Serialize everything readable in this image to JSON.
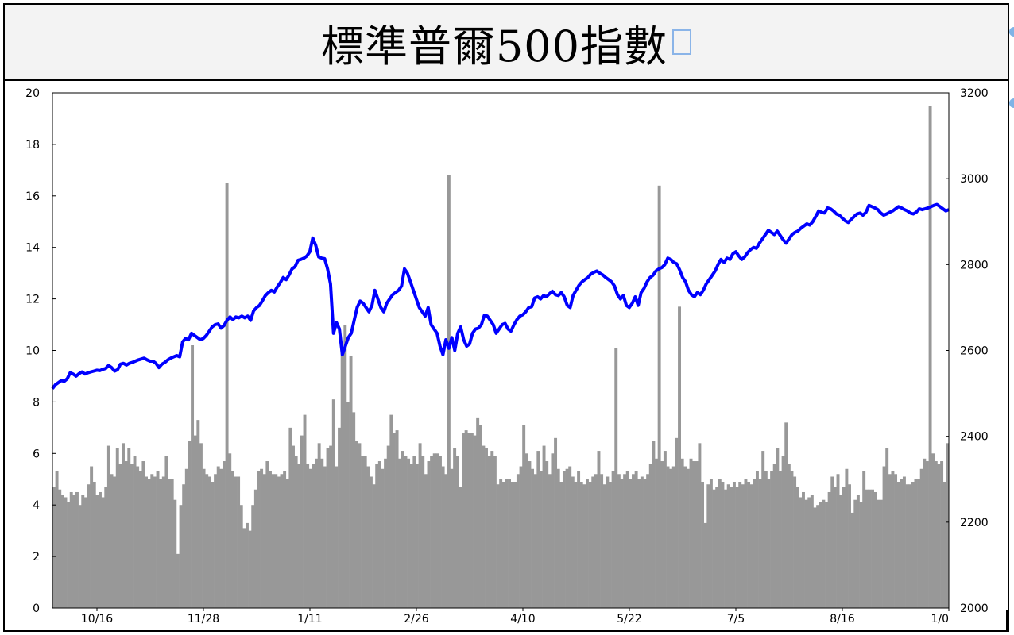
{
  "title": "標準普爾500指數",
  "colors": {
    "index_line": "#0000ff",
    "volume_bars": "#989898",
    "title_background": "#f3f3f3"
  },
  "chart_data": {
    "type": "bar+line",
    "title": "標準普爾500指數",
    "x_tick_labels": [
      "10/16",
      "11/28",
      "1/11",
      "2/26",
      "4/10",
      "5/22",
      "7/5",
      "8/16",
      "1/0"
    ],
    "y_left": {
      "ticks": [
        "0",
        "2",
        "4",
        "6",
        "8",
        "10",
        "12",
        "14",
        "16",
        "18",
        "20"
      ],
      "range": [
        0,
        20
      ]
    },
    "y_right": {
      "ticks": [
        "2000",
        "2200",
        "2400",
        "2600",
        "2800",
        "3000",
        "3200"
      ],
      "range": [
        2000,
        3200
      ]
    },
    "grid": false,
    "series": [
      {
        "kind": "bar",
        "axis": "left",
        "values": [
          4.7,
          5.3,
          4.6,
          4.4,
          4.3,
          4.1,
          4.5,
          4.4,
          4.5,
          4.0,
          4.4,
          4.3,
          4.8,
          5.5,
          4.9,
          4.4,
          4.5,
          4.3,
          4.7,
          6.3,
          5.2,
          5.1,
          6.2,
          5.6,
          6.4,
          5.7,
          6.2,
          5.6,
          5.9,
          5.5,
          5.3,
          5.7,
          5.1,
          5.0,
          5.2,
          5.1,
          5.3,
          5.0,
          5.1,
          5.9,
          5.0,
          5.0,
          4.2,
          2.1,
          4.0,
          4.8,
          5.4,
          6.5,
          10.2,
          6.7,
          7.3,
          6.4,
          5.4,
          5.2,
          5.1,
          4.9,
          5.2,
          5.5,
          5.4,
          5.7,
          16.5,
          6.0,
          5.3,
          5.1,
          5.1,
          4.0,
          3.1,
          3.3,
          3.0,
          4.0,
          4.6,
          5.3,
          5.4,
          5.2,
          5.7,
          5.3,
          5.2,
          5.2,
          5.1,
          5.2,
          5.3,
          5.0,
          7.0,
          6.3,
          5.9,
          5.6,
          6.7,
          7.5,
          5.6,
          5.4,
          5.6,
          5.8,
          6.4,
          5.8,
          5.5,
          6.2,
          6.3,
          8.1,
          5.5,
          7.0,
          10.0,
          11.0,
          8.0,
          9.8,
          7.6,
          6.5,
          6.4,
          5.9,
          5.9,
          5.5,
          5.1,
          4.8,
          5.6,
          5.7,
          5.4,
          5.8,
          6.3,
          7.5,
          6.8,
          6.9,
          5.8,
          6.1,
          5.9,
          5.8,
          5.6,
          5.9,
          5.6,
          6.4,
          5.9,
          5.2,
          5.7,
          5.9,
          6.0,
          6.0,
          5.9,
          5.5,
          5.2,
          16.8,
          5.4,
          6.2,
          5.9,
          4.7,
          6.8,
          6.9,
          6.8,
          6.8,
          6.7,
          7.4,
          7.1,
          6.3,
          6.2,
          5.9,
          6.1,
          5.9,
          4.8,
          5.0,
          4.9,
          5.0,
          5.0,
          4.9,
          4.9,
          5.2,
          5.5,
          7.1,
          6.0,
          5.7,
          5.4,
          5.2,
          6.1,
          5.3,
          6.3,
          5.7,
          5.2,
          6.0,
          6.6,
          5.4,
          4.9,
          5.3,
          5.4,
          5.5,
          5.1,
          4.9,
          5.3,
          4.9,
          4.8,
          5.0,
          4.9,
          5.1,
          5.2,
          6.1,
          5.2,
          4.8,
          5.1,
          4.9,
          5.3,
          10.1,
          5.2,
          5.0,
          5.2,
          5.3,
          5.0,
          5.2,
          5.3,
          5.0,
          5.1,
          5.0,
          5.2,
          5.6,
          6.5,
          5.8,
          16.4,
          5.7,
          6.1,
          5.5,
          5.4,
          5.5,
          6.6,
          11.7,
          5.8,
          5.5,
          5.4,
          5.8,
          5.7,
          5.7,
          6.4,
          4.9,
          3.3,
          4.8,
          5.0,
          4.6,
          4.7,
          5.0,
          4.9,
          4.6,
          4.8,
          4.7,
          4.9,
          4.7,
          4.9,
          4.8,
          5.0,
          4.9,
          4.8,
          5.0,
          5.3,
          5.0,
          6.1,
          5.3,
          5.0,
          5.3,
          5.6,
          6.2,
          5.3,
          5.9,
          7.2,
          5.6,
          5.3,
          5.1,
          4.7,
          4.3,
          4.5,
          4.2,
          4.3,
          4.4,
          3.9,
          4.0,
          4.1,
          4.2,
          4.1,
          4.5,
          5.1,
          4.7,
          5.2,
          4.4,
          4.7,
          5.4,
          4.8,
          3.7,
          4.2,
          4.4,
          4.1,
          5.3,
          4.6,
          4.6,
          4.6,
          4.5,
          4.2,
          4.2,
          5.5,
          6.2,
          5.2,
          5.3,
          5.2,
          4.9,
          5.0,
          5.1,
          4.8,
          4.8,
          4.9,
          5.0,
          5.0,
          5.4,
          5.8,
          5.7,
          19.5,
          6.0,
          5.7,
          5.6,
          5.7,
          4.9,
          6.4
        ]
      },
      {
        "kind": "line",
        "axis": "right",
        "values": [
          2511,
          2520,
          2525,
          2530,
          2528,
          2534,
          2548,
          2545,
          2540,
          2546,
          2550,
          2545,
          2548,
          2550,
          2552,
          2554,
          2553,
          2556,
          2558,
          2565,
          2560,
          2552,
          2555,
          2568,
          2570,
          2566,
          2570,
          2572,
          2575,
          2578,
          2580,
          2582,
          2578,
          2575,
          2575,
          2570,
          2560,
          2568,
          2572,
          2578,
          2582,
          2585,
          2588,
          2585,
          2620,
          2628,
          2625,
          2640,
          2635,
          2630,
          2625,
          2628,
          2635,
          2645,
          2655,
          2660,
          2662,
          2652,
          2658,
          2670,
          2678,
          2672,
          2678,
          2676,
          2680,
          2676,
          2680,
          2670,
          2692,
          2700,
          2705,
          2716,
          2728,
          2735,
          2740,
          2736,
          2748,
          2758,
          2770,
          2765,
          2776,
          2790,
          2795,
          2810,
          2812,
          2815,
          2820,
          2830,
          2862,
          2845,
          2818,
          2815,
          2814,
          2790,
          2755,
          2640,
          2665,
          2650,
          2590,
          2610,
          2630,
          2640,
          2670,
          2700,
          2715,
          2710,
          2700,
          2690,
          2705,
          2740,
          2720,
          2700,
          2690,
          2710,
          2720,
          2730,
          2735,
          2740,
          2750,
          2790,
          2780,
          2760,
          2740,
          2720,
          2700,
          2690,
          2680,
          2700,
          2660,
          2650,
          2640,
          2610,
          2590,
          2625,
          2605,
          2630,
          2600,
          2640,
          2655,
          2625,
          2610,
          2615,
          2640,
          2650,
          2652,
          2660,
          2682,
          2680,
          2670,
          2660,
          2640,
          2650,
          2660,
          2663,
          2650,
          2645,
          2660,
          2672,
          2680,
          2683,
          2690,
          2700,
          2702,
          2722,
          2725,
          2720,
          2728,
          2725,
          2732,
          2738,
          2730,
          2728,
          2735,
          2725,
          2705,
          2700,
          2728,
          2740,
          2752,
          2760,
          2765,
          2770,
          2778,
          2782,
          2785,
          2780,
          2776,
          2770,
          2765,
          2760,
          2750,
          2730,
          2720,
          2728,
          2705,
          2700,
          2710,
          2725,
          2705,
          2735,
          2745,
          2760,
          2770,
          2775,
          2785,
          2790,
          2793,
          2800,
          2815,
          2812,
          2805,
          2802,
          2788,
          2770,
          2760,
          2740,
          2730,
          2725,
          2735,
          2730,
          2740,
          2755,
          2765,
          2775,
          2785,
          2800,
          2812,
          2805,
          2815,
          2812,
          2825,
          2830,
          2820,
          2812,
          2818,
          2828,
          2835,
          2840,
          2838,
          2850,
          2860,
          2870,
          2880,
          2875,
          2870,
          2878,
          2868,
          2858,
          2850,
          2860,
          2870,
          2875,
          2878,
          2885,
          2890,
          2895,
          2892,
          2900,
          2912,
          2925,
          2922,
          2920,
          2932,
          2930,
          2925,
          2918,
          2915,
          2908,
          2902,
          2898,
          2905,
          2912,
          2918,
          2920,
          2915,
          2922,
          2938,
          2935,
          2932,
          2928,
          2920,
          2915,
          2918,
          2922,
          2925,
          2930,
          2935,
          2932,
          2928,
          2925,
          2920,
          2918,
          2922,
          2930,
          2928,
          2930,
          2932,
          2935,
          2938,
          2940,
          2935,
          2930,
          2925,
          2928
        ]
      }
    ]
  }
}
